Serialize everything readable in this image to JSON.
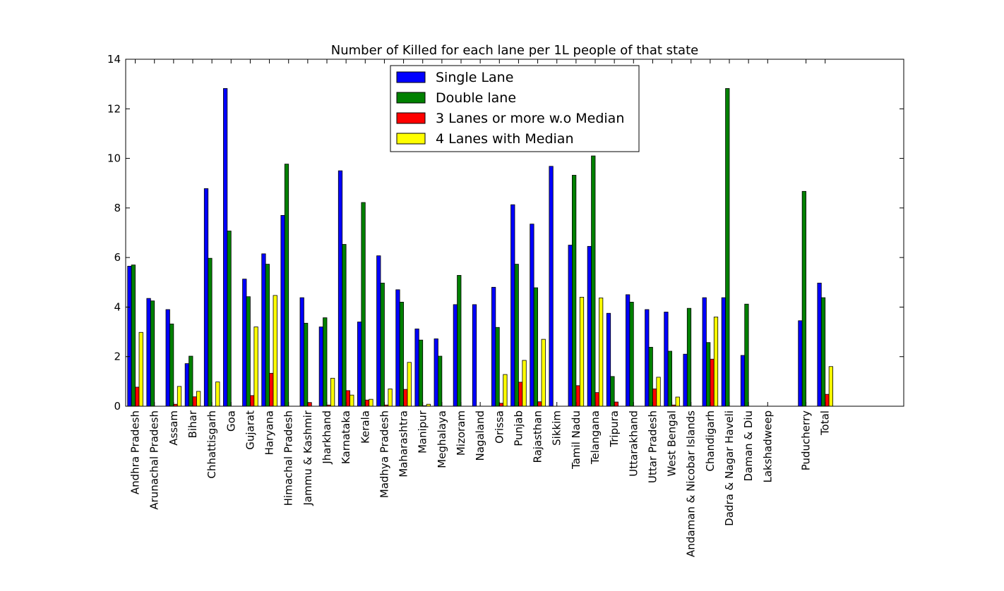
{
  "chart_data": {
    "type": "bar",
    "title": "Number of Killed for each lane per 1L people of that state",
    "xlabel": "",
    "ylabel": "",
    "ylim": [
      0,
      14
    ],
    "yticks": [
      0,
      2,
      4,
      6,
      8,
      10,
      12,
      14
    ],
    "xlim": [
      -0.1,
      40.5
    ],
    "legend_position": "upper-center",
    "categories": [
      "Andhra Pradesh",
      "Arunachal Pradesh",
      "Assam",
      "Bihar",
      "Chhattisgarh",
      "Goa",
      "Gujarat",
      "Haryana",
      "Himachal Pradesh",
      "Jammu & Kashmir",
      "Jharkhand",
      "Karnataka",
      "Kerala",
      "Madhya Pradesh",
      "Maharashtra",
      "Manipur",
      "Meghalaya",
      "Mizoram",
      "Nagaland",
      "Orissa",
      "Punjab",
      "Rajasthan",
      "Sikkim",
      "Tamil Nadu",
      "Telangana",
      "Tripura",
      "Uttarakhand",
      "Uttar Pradesh",
      "West Bengal",
      "Andaman & Nicobar Islands",
      "Chandigarh",
      "Dadra & Nagar Haveli",
      "Daman & Diu",
      "Lakshadweep",
      "Puducherry",
      "Total"
    ],
    "series": [
      {
        "name": "Single Lane",
        "color": "#0000ff",
        "values": [
          5.65,
          4.35,
          3.9,
          1.72,
          8.78,
          12.82,
          5.13,
          6.15,
          7.7,
          4.38,
          3.2,
          9.5,
          3.4,
          6.07,
          4.7,
          3.12,
          2.72,
          4.1,
          4.1,
          4.8,
          8.13,
          7.35,
          9.68,
          6.5,
          6.45,
          3.75,
          4.5,
          3.9,
          3.8,
          2.1,
          4.38,
          4.38,
          2.05,
          0,
          3.45,
          4.97
        ]
      },
      {
        "name": "Double lane",
        "color": "#008000",
        "values": [
          5.7,
          4.25,
          3.32,
          2.02,
          5.97,
          7.07,
          4.42,
          5.73,
          9.77,
          3.35,
          3.57,
          6.53,
          8.22,
          4.97,
          4.2,
          2.67,
          2.02,
          5.28,
          0,
          3.18,
          5.73,
          4.78,
          0,
          9.32,
          10.1,
          1.2,
          4.2,
          2.38,
          2.22,
          3.95,
          2.57,
          12.82,
          4.12,
          0,
          8.67,
          4.38
        ]
      },
      {
        "name": "3 Lanes or more w.o Median",
        "color": "#ff0000",
        "values": [
          0.77,
          0,
          0.08,
          0.38,
          0,
          0,
          0.43,
          1.33,
          0,
          0.15,
          0.05,
          0.63,
          0.25,
          0.05,
          0.68,
          0.02,
          0,
          0,
          0,
          0.12,
          0.97,
          0.18,
          0,
          0.83,
          0.55,
          0.17,
          0,
          0.7,
          0.05,
          0,
          1.9,
          0,
          0,
          0,
          0,
          0.48
        ]
      },
      {
        "name": "4 Lanes with Median",
        "color": "#ffff00",
        "values": [
          2.98,
          0,
          0.8,
          0.6,
          0.98,
          0,
          3.2,
          4.47,
          0,
          0,
          1.13,
          0.45,
          0.28,
          0.7,
          1.77,
          0.08,
          0,
          0,
          0,
          1.28,
          1.85,
          2.7,
          0,
          4.4,
          4.37,
          0,
          0,
          1.17,
          0.37,
          0,
          3.6,
          0,
          0,
          0,
          0,
          1.6
        ]
      }
    ]
  }
}
